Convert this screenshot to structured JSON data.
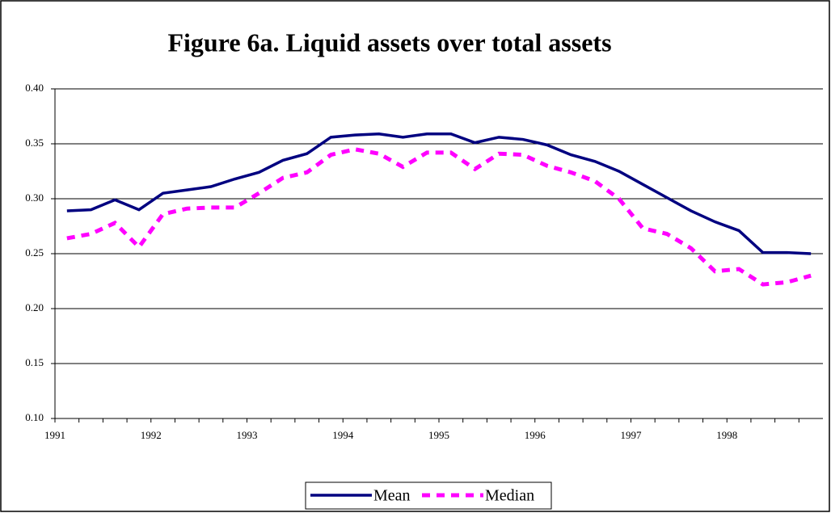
{
  "chart_data": {
    "type": "line",
    "title": "Figure 6a. Liquid assets over total assets",
    "categories": [
      "1991",
      null,
      null,
      null,
      "1992",
      null,
      null,
      null,
      "1993",
      null,
      null,
      null,
      "1994",
      null,
      null,
      null,
      "1995",
      null,
      null,
      null,
      "1996",
      null,
      null,
      null,
      "1997",
      null,
      null,
      null,
      "1998",
      null,
      null,
      null
    ],
    "series": [
      {
        "name": "Mean",
        "color": "#000080",
        "dash": false,
        "values": [
          0.289,
          0.29,
          0.299,
          0.29,
          0.305,
          0.308,
          0.311,
          0.318,
          0.324,
          0.335,
          0.341,
          0.356,
          0.358,
          0.359,
          0.356,
          0.359,
          0.359,
          0.351,
          0.356,
          0.354,
          0.349,
          0.34,
          0.334,
          0.325,
          0.313,
          0.301,
          0.289,
          0.279,
          0.271,
          0.251,
          0.251,
          0.25
        ]
      },
      {
        "name": "Median",
        "color": "#ff00ff",
        "dash": true,
        "values": [
          0.264,
          0.268,
          0.278,
          0.256,
          0.286,
          0.291,
          0.292,
          0.292,
          0.305,
          0.319,
          0.324,
          0.34,
          0.345,
          0.341,
          0.329,
          0.342,
          0.342,
          0.327,
          0.341,
          0.34,
          0.33,
          0.324,
          0.316,
          0.3,
          0.273,
          0.268,
          0.255,
          0.234,
          0.236,
          0.222,
          0.224,
          0.23
        ]
      }
    ],
    "ylim": [
      0.1,
      0.4
    ],
    "yticks": [
      {
        "value": 0.1,
        "label": "0.10"
      },
      {
        "value": 0.15,
        "label": "0.15"
      },
      {
        "value": 0.2,
        "label": "0.20"
      },
      {
        "value": 0.25,
        "label": "0.25"
      },
      {
        "value": 0.3,
        "label": "0.30"
      },
      {
        "value": 0.35,
        "label": "0.35"
      },
      {
        "value": 0.4,
        "label": "0.40"
      }
    ],
    "grid": true,
    "legend": "bottom"
  }
}
